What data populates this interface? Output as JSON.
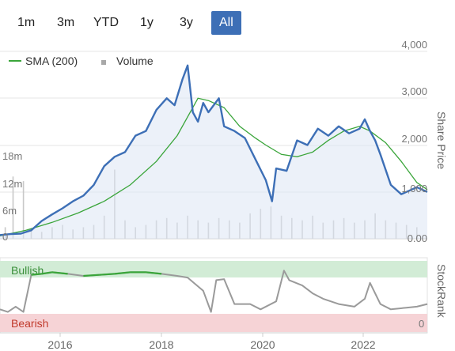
{
  "toolbar": {
    "ranges": [
      "1m",
      "3m",
      "YTD",
      "1y",
      "3y",
      "All"
    ],
    "active": "All",
    "accent_color": "#3d6fb6"
  },
  "legend": {
    "sma_label": "SMA (200)",
    "volume_label": "Volume",
    "sma_color": "#3aa53a",
    "volume_icon": "square-icon"
  },
  "price_axis": {
    "label": "Share Price",
    "ticks": [
      "4,000",
      "3,000",
      "2,000",
      "1,000",
      "0.00"
    ]
  },
  "volume_axis": {
    "ticks": [
      "18m",
      "12m",
      "6m",
      "0"
    ]
  },
  "stockrank": {
    "label": "StockRank",
    "bullish_label": "Bullish",
    "bearish_label": "Bearish",
    "bottom_tick": "0",
    "bullish_color": "#d2ecd6",
    "bearish_color": "#f6d3d6"
  },
  "x_axis": {
    "ticks": [
      "2016",
      "2018",
      "2020",
      "2022"
    ]
  },
  "chart_data": [
    {
      "type": "line",
      "xlim": [
        2015.0,
        2023.2
      ],
      "ylim": [
        0,
        4000
      ],
      "series": [
        {
          "name": "Share price",
          "color": "#3d6fb6",
          "x": [
            2015.0,
            2015.2,
            2015.4,
            2015.6,
            2015.8,
            2016.0,
            2016.2,
            2016.4,
            2016.6,
            2016.8,
            2017.0,
            2017.2,
            2017.4,
            2017.6,
            2017.8,
            2018.0,
            2018.2,
            2018.35,
            2018.5,
            2018.6,
            2018.7,
            2018.8,
            2018.9,
            2019.0,
            2019.2,
            2019.3,
            2019.5,
            2019.7,
            2019.9,
            2020.1,
            2020.22,
            2020.3,
            2020.5,
            2020.7,
            2020.9,
            2021.1,
            2021.3,
            2021.5,
            2021.7,
            2021.9,
            2022.0,
            2022.1,
            2022.2,
            2022.3,
            2022.5,
            2022.7,
            2022.9,
            2023.0,
            2023.2
          ],
          "values": [
            80,
            100,
            110,
            180,
            380,
            520,
            650,
            800,
            920,
            1150,
            1550,
            1750,
            1850,
            2200,
            2300,
            2750,
            3000,
            2850,
            3400,
            3700,
            2700,
            2500,
            2900,
            2700,
            3000,
            2400,
            2300,
            2150,
            1700,
            1250,
            800,
            1500,
            1450,
            2100,
            2000,
            2350,
            2200,
            2400,
            2250,
            2350,
            2550,
            2300,
            2100,
            1800,
            1150,
            950,
            1050,
            1100,
            1000
          ]
        },
        {
          "name": "SMA (200)",
          "color": "#3aa53a",
          "x": [
            2015.0,
            2015.5,
            2016.0,
            2016.5,
            2017.0,
            2017.5,
            2018.0,
            2018.4,
            2018.8,
            2019.0,
            2019.3,
            2019.6,
            2019.9,
            2020.1,
            2020.4,
            2020.7,
            2021.0,
            2021.3,
            2021.6,
            2021.9,
            2022.1,
            2022.4,
            2022.7,
            2023.0,
            2023.2
          ],
          "values": [
            60,
            180,
            350,
            550,
            800,
            1150,
            1650,
            2200,
            3000,
            2950,
            2800,
            2400,
            2150,
            2000,
            1800,
            1750,
            1850,
            2100,
            2300,
            2400,
            2300,
            2050,
            1650,
            1200,
            1050
          ]
        }
      ]
    },
    {
      "type": "bar",
      "name": "Volume",
      "units": "m",
      "ylim": [
        0,
        18
      ],
      "color": "#c8c8c8",
      "x": [
        2015.1,
        2015.25,
        2015.45,
        2015.6,
        2015.8,
        2016.0,
        2016.2,
        2016.4,
        2016.6,
        2016.8,
        2017.0,
        2017.2,
        2017.4,
        2017.6,
        2017.8,
        2018.0,
        2018.2,
        2018.4,
        2018.6,
        2018.8,
        2019.0,
        2019.2,
        2019.4,
        2019.6,
        2019.8,
        2020.0,
        2020.2,
        2020.4,
        2020.6,
        2020.8,
        2021.0,
        2021.2,
        2021.4,
        2021.6,
        2021.8,
        2022.0,
        2022.2,
        2022.4,
        2022.6,
        2022.8,
        2023.0
      ],
      "values": [
        2.5,
        13.5,
        12.5,
        2.0,
        1.5,
        2.5,
        3.0,
        2.0,
        2.5,
        3.0,
        5.0,
        15.0,
        4.0,
        2.5,
        3.0,
        4.0,
        4.5,
        3.5,
        5.0,
        4.0,
        3.5,
        4.5,
        4.0,
        3.5,
        5.5,
        6.5,
        7.0,
        5.0,
        4.5,
        4.0,
        5.0,
        3.5,
        4.0,
        4.5,
        3.5,
        4.0,
        5.5,
        4.0,
        3.5,
        3.0,
        2.5
      ]
    },
    {
      "type": "line",
      "name": "StockRank",
      "color": "#9a9a9a",
      "highlight_color": "#3aa53a",
      "ylim": [
        0,
        100
      ],
      "x": [
        2015.0,
        2015.15,
        2015.3,
        2015.45,
        2015.6,
        2015.8,
        2016.0,
        2016.3,
        2016.6,
        2016.9,
        2017.2,
        2017.5,
        2017.8,
        2018.1,
        2018.4,
        2018.6,
        2018.9,
        2019.05,
        2019.15,
        2019.3,
        2019.5,
        2019.8,
        2020.0,
        2020.3,
        2020.45,
        2020.55,
        2020.8,
        2021.0,
        2021.2,
        2021.5,
        2021.8,
        2022.0,
        2022.1,
        2022.3,
        2022.5,
        2022.8,
        2023.0,
        2023.2
      ],
      "values": [
        25,
        20,
        30,
        20,
        90,
        92,
        95,
        92,
        88,
        90,
        92,
        95,
        95,
        92,
        88,
        85,
        60,
        20,
        80,
        82,
        35,
        35,
        25,
        40,
        98,
        80,
        70,
        55,
        45,
        35,
        30,
        45,
        75,
        35,
        25,
        28,
        30,
        35
      ]
    }
  ]
}
